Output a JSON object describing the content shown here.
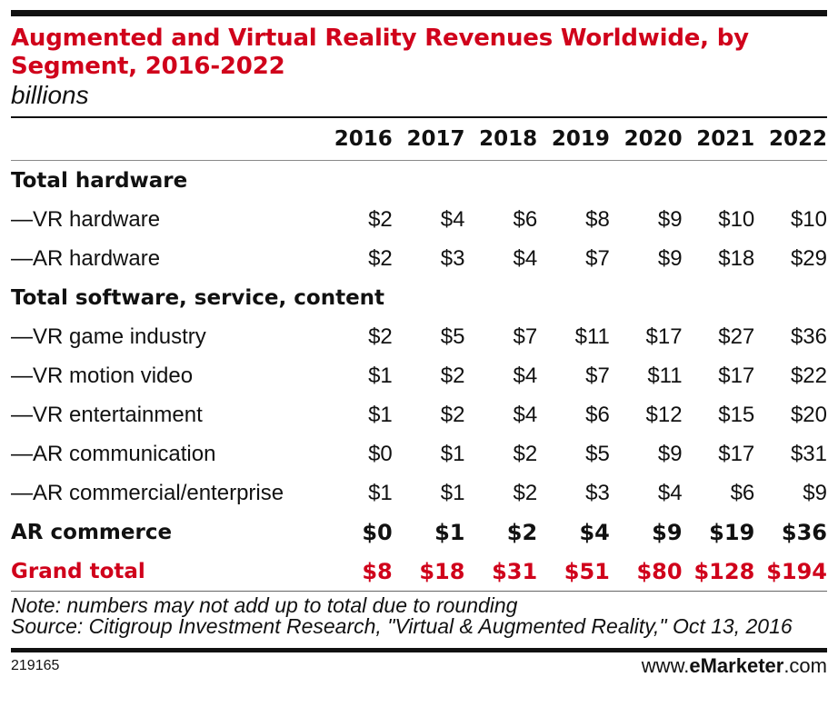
{
  "chart_data": {
    "type": "table",
    "title": "Augmented and Virtual Reality Revenues Worldwide, by Segment, 2016-2022",
    "subtitle": "billions",
    "columns": [
      "2016",
      "2017",
      "2018",
      "2019",
      "2020",
      "2021",
      "2022"
    ],
    "rows": [
      {
        "label": "Total hardware",
        "kind": "section",
        "values": []
      },
      {
        "label": "—VR hardware",
        "kind": "item",
        "values": [
          "$2",
          "$4",
          "$6",
          "$8",
          "$9",
          "$10",
          "$10"
        ]
      },
      {
        "label": "—AR hardware",
        "kind": "item",
        "values": [
          "$2",
          "$3",
          "$4",
          "$7",
          "$9",
          "$18",
          "$29"
        ]
      },
      {
        "label": "Total software, service, content",
        "kind": "section",
        "values": []
      },
      {
        "label": "—VR game industry",
        "kind": "item",
        "values": [
          "$2",
          "$5",
          "$7",
          "$11",
          "$17",
          "$27",
          "$36"
        ]
      },
      {
        "label": "—VR motion video",
        "kind": "item",
        "values": [
          "$1",
          "$2",
          "$4",
          "$7",
          "$11",
          "$17",
          "$22"
        ]
      },
      {
        "label": "—VR entertainment",
        "kind": "item",
        "values": [
          "$1",
          "$2",
          "$4",
          "$6",
          "$12",
          "$15",
          "$20"
        ]
      },
      {
        "label": "—AR communication",
        "kind": "item",
        "values": [
          "$0",
          "$1",
          "$2",
          "$5",
          "$9",
          "$17",
          "$31"
        ]
      },
      {
        "label": "—AR commercial/enterprise",
        "kind": "item",
        "values": [
          "$1",
          "$1",
          "$2",
          "$3",
          "$4",
          "$6",
          "$9"
        ]
      },
      {
        "label": "AR commerce",
        "kind": "bold",
        "values": [
          "$0",
          "$1",
          "$2",
          "$4",
          "$9",
          "$19",
          "$36"
        ]
      },
      {
        "label": "Grand total",
        "kind": "total",
        "values": [
          "$8",
          "$18",
          "$31",
          "$51",
          "$80",
          "$128",
          "$194"
        ]
      }
    ],
    "notes": [
      "Note: numbers may not add up to total due to rounding",
      "Source: Citigroup Investment Research, \"Virtual & Augmented Reality,\" Oct 13, 2016"
    ]
  },
  "footer": {
    "chart_id": "219165",
    "brand_prefix": "www.",
    "brand_name": "eMarketer",
    "brand_suffix": ".com"
  },
  "colors": {
    "accent": "#d0021b",
    "text": "#111111",
    "rule": "#111111"
  }
}
